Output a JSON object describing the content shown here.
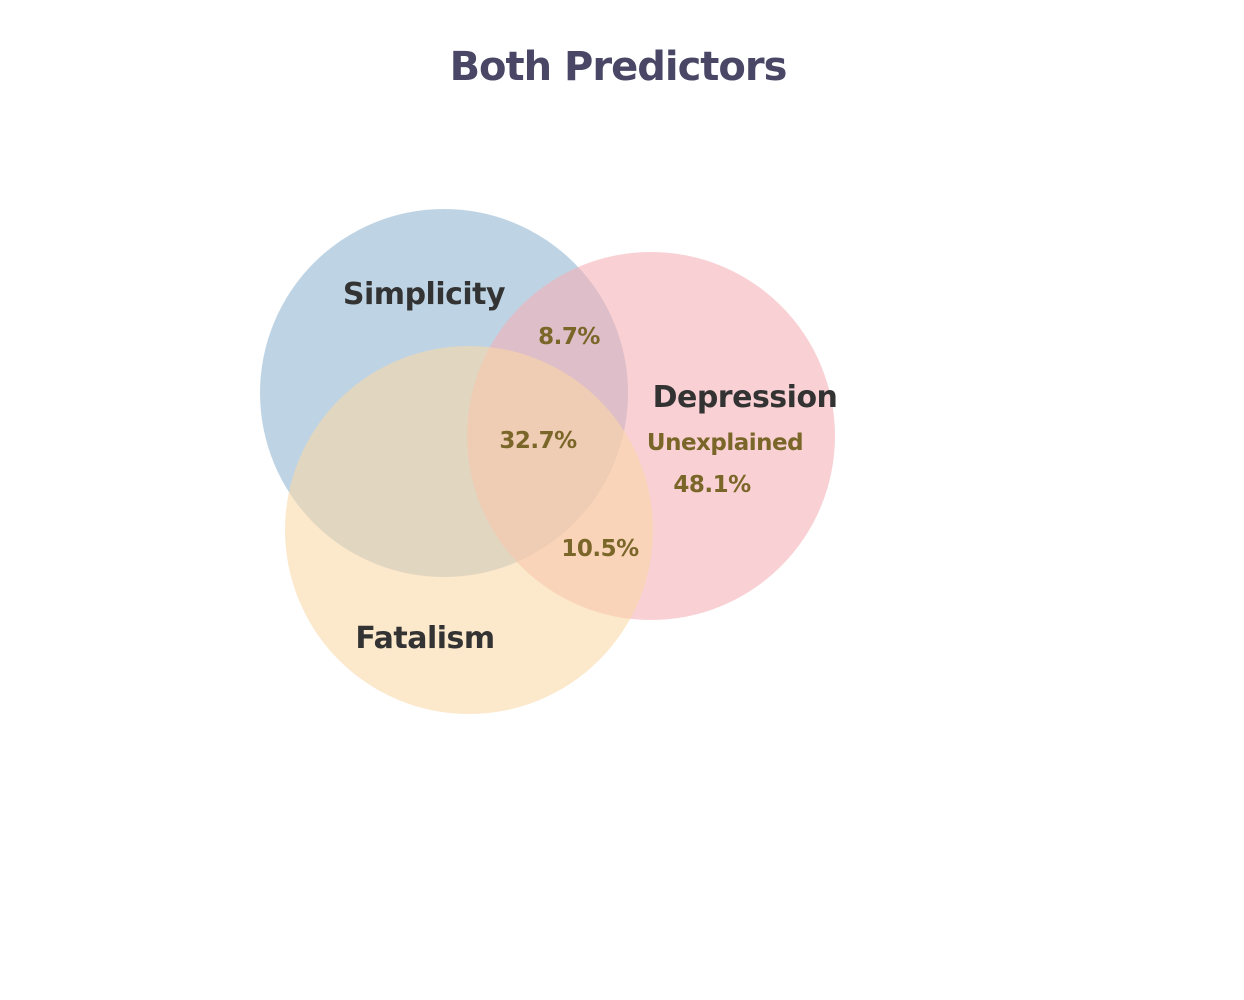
{
  "title": "Both Predictors",
  "colors": {
    "title": "#4a4766",
    "set_label": "#333333",
    "region_label": "#7a6628",
    "simplicity": "#8fb5d3",
    "depression": "#f4aeb4",
    "fatalism": "#f9d7a6"
  },
  "sets": {
    "simplicity": {
      "label": "Simplicity"
    },
    "depression": {
      "label": "Depression"
    },
    "fatalism": {
      "label": "Fatalism"
    }
  },
  "regions": {
    "simplicity_depression": "8.7%",
    "all_three": "32.7%",
    "depression_fatalism": "10.5%",
    "unexplained_label": "Unexplained",
    "unexplained_value": "48.1%"
  }
}
